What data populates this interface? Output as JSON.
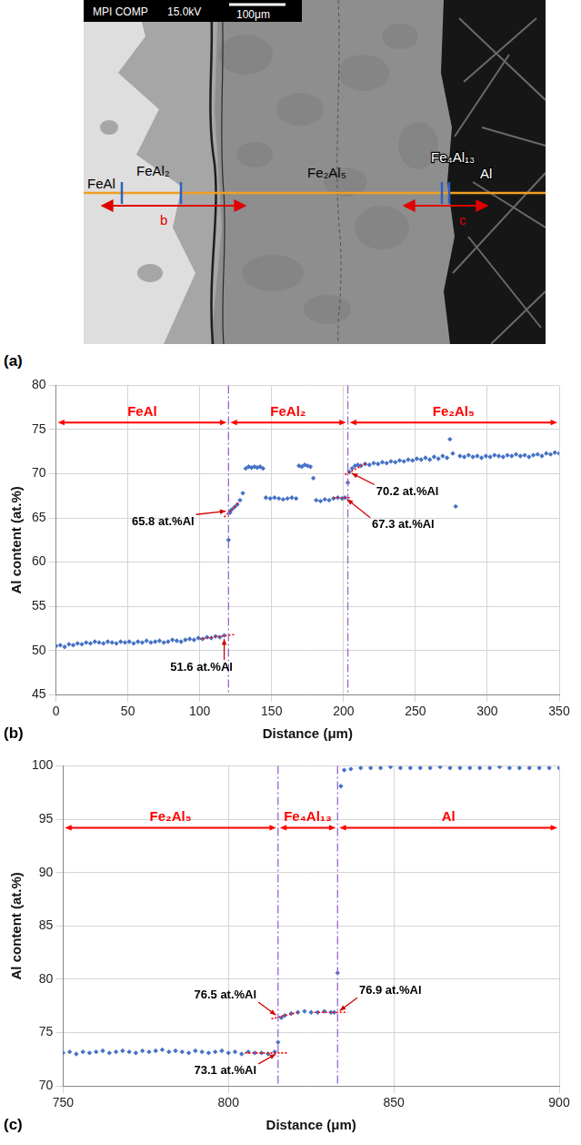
{
  "micrograph": {
    "panel": "(a)",
    "header": [
      "MPI COMP",
      "15.0kV"
    ],
    "scale_bar": "100μm",
    "phase_labels": [
      "FeAl",
      "FeAl₂",
      "Fe₂Al₅",
      "Fe₄Al₁₃",
      "Al"
    ],
    "line_labels": [
      "b",
      "c"
    ]
  },
  "chart_data": [
    {
      "type": "scatter",
      "panel": "(b)",
      "x_label": "Distance (μm)",
      "y_label": "Al content (at.%)",
      "xlim": [
        0,
        350
      ],
      "xticks": [
        0,
        50,
        100,
        150,
        200,
        250,
        300,
        350
      ],
      "ylim": [
        45,
        80
      ],
      "yticks": [
        45,
        50,
        55,
        60,
        65,
        70,
        75,
        80
      ],
      "grid": true,
      "series": [
        {
          "color": "#4472c4",
          "marker": "diamond",
          "x": [
            0,
            3,
            6,
            9,
            12,
            15,
            18,
            21,
            24,
            27,
            30,
            33,
            36,
            39,
            42,
            45,
            48,
            51,
            54,
            57,
            60,
            63,
            66,
            69,
            72,
            75,
            78,
            81,
            84,
            87,
            90,
            93,
            96,
            99,
            102,
            105,
            108,
            111,
            114,
            117,
            120,
            121,
            122,
            124,
            126,
            128,
            130,
            132,
            134,
            136,
            138,
            140,
            142,
            144,
            146,
            149,
            152,
            155,
            158,
            161,
            164,
            167,
            169,
            171,
            173,
            175,
            177,
            179,
            181,
            184,
            187,
            190,
            193,
            196,
            199,
            201,
            203,
            204,
            206,
            208,
            210,
            212,
            215,
            218,
            221,
            224,
            227,
            230,
            233,
            236,
            239,
            242,
            245,
            248,
            251,
            254,
            257,
            260,
            263,
            266,
            269,
            272,
            274,
            276,
            278,
            281,
            284,
            287,
            290,
            293,
            296,
            299,
            302,
            305,
            308,
            311,
            314,
            317,
            320,
            323,
            326,
            329,
            332,
            335,
            338,
            341,
            344,
            347,
            350
          ],
          "values": [
            50.5,
            50.6,
            50.4,
            50.7,
            50.6,
            50.8,
            50.7,
            50.9,
            50.8,
            51.0,
            50.9,
            50.8,
            51.0,
            50.9,
            50.8,
            51.0,
            50.9,
            51.0,
            50.8,
            51.0,
            50.9,
            51.1,
            50.9,
            51.0,
            51.1,
            50.9,
            51.0,
            51.2,
            51.1,
            51.0,
            51.2,
            51.3,
            51.2,
            51.4,
            51.3,
            51.5,
            51.4,
            51.6,
            51.5,
            51.7,
            62.5,
            65.6,
            65.9,
            66.2,
            66.5,
            67.0,
            67.8,
            70.6,
            70.8,
            70.7,
            70.8,
            70.7,
            70.8,
            70.6,
            67.3,
            67.2,
            67.3,
            67.2,
            67.1,
            67.2,
            67.3,
            67.2,
            70.9,
            70.8,
            71.0,
            70.9,
            70.8,
            69.5,
            67.0,
            66.9,
            67.1,
            67.0,
            67.2,
            67.3,
            67.2,
            67.3,
            69.0,
            70.2,
            70.6,
            70.9,
            71.0,
            70.9,
            71.1,
            71.0,
            71.2,
            71.1,
            71.3,
            71.2,
            71.4,
            71.3,
            71.5,
            71.4,
            71.6,
            71.5,
            71.7,
            71.6,
            71.8,
            71.6,
            71.9,
            71.7,
            72.0,
            71.8,
            73.9,
            72.3,
            66.3,
            72.0,
            71.9,
            72.1,
            71.9,
            72.0,
            71.8,
            72.0,
            71.9,
            72.1,
            72.0,
            71.9,
            72.1,
            72.0,
            72.2,
            72.0,
            72.1,
            71.9,
            72.1,
            72.2,
            72.0,
            72.3,
            72.2,
            72.4,
            72.3
          ]
        }
      ],
      "fits": [
        {
          "x": [
            100,
            124
          ],
          "values": [
            51.3,
            51.8
          ]
        },
        {
          "x": [
            117,
            127
          ],
          "values": [
            65.1,
            66.7
          ]
        },
        {
          "x": [
            193,
            205
          ],
          "values": [
            67.3,
            67.3
          ]
        },
        {
          "x": [
            201,
            216
          ],
          "values": [
            69.9,
            71.2
          ]
        }
      ],
      "fit_color": "#ff0000",
      "fit_line_style": "dotted",
      "boundaries": [
        120,
        203
      ],
      "boundary_color": "#9966cc",
      "boundary_line_style": "dashdot",
      "phases": [
        {
          "label": "FeAl",
          "from": 0,
          "to": 120
        },
        {
          "label": "FeAl₂",
          "from": 120,
          "to": 203
        },
        {
          "label": "Fe₂Al₅",
          "from": 203,
          "to": 350
        }
      ],
      "phase_bar_y": 75.8,
      "phase_color": "#ff0000",
      "annotations": [
        {
          "text": "51.6 at.%Al",
          "x": 117,
          "y": 51.6
        },
        {
          "text": "65.8 at.%Al",
          "x": 120,
          "y": 65.8
        },
        {
          "text": "70.2 at.%Al",
          "x": 204,
          "y": 70.2
        },
        {
          "text": "67.3 at.%Al",
          "x": 201,
          "y": 67.3
        }
      ]
    },
    {
      "type": "scatter",
      "panel": "(c)",
      "x_label": "Distance (μm)",
      "y_label": "Al content (at.%)",
      "xlim": [
        750,
        900
      ],
      "xticks": [
        750,
        800,
        850,
        900
      ],
      "ylim": [
        70,
        100
      ],
      "yticks": [
        70,
        75,
        80,
        85,
        90,
        95,
        100
      ],
      "grid": true,
      "series": [
        {
          "color": "#4472c4",
          "marker": "diamond",
          "x": [
            750,
            752,
            754,
            756,
            758,
            760,
            762,
            764,
            766,
            768,
            770,
            772,
            774,
            776,
            778,
            780,
            782,
            784,
            786,
            788,
            790,
            792,
            794,
            796,
            798,
            800,
            802,
            804,
            806,
            808,
            810,
            812,
            814,
            815,
            816,
            817,
            819,
            821,
            823,
            825,
            827,
            829,
            831,
            832,
            833,
            834,
            835,
            837,
            840,
            843,
            846,
            849,
            852,
            855,
            858,
            861,
            864,
            867,
            870,
            873,
            876,
            879,
            882,
            885,
            888,
            891,
            894,
            897,
            900
          ],
          "values": [
            73.1,
            73.2,
            73.0,
            73.2,
            73.1,
            73.2,
            73.3,
            73.1,
            73.2,
            73.3,
            73.2,
            73.1,
            73.3,
            73.2,
            73.3,
            73.4,
            73.2,
            73.3,
            73.2,
            73.1,
            73.3,
            73.2,
            73.1,
            73.2,
            73.3,
            73.1,
            73.2,
            73.0,
            73.2,
            73.1,
            73.1,
            73.0,
            73.2,
            74.1,
            76.4,
            76.6,
            76.8,
            76.9,
            77.0,
            76.9,
            76.9,
            77.0,
            76.9,
            76.9,
            80.6,
            98.1,
            99.6,
            99.7,
            99.8,
            99.8,
            99.8,
            99.9,
            99.8,
            99.8,
            99.8,
            99.8,
            99.9,
            99.8,
            99.8,
            99.8,
            99.8,
            99.8,
            99.9,
            99.8,
            99.8,
            99.8,
            99.8,
            99.8,
            99.8
          ]
        }
      ],
      "fits": [
        {
          "x": [
            805,
            818
          ],
          "values": [
            73.1,
            73.1
          ]
        },
        {
          "x": [
            813,
            821
          ],
          "values": [
            76.3,
            76.9
          ]
        },
        {
          "x": [
            826,
            836
          ],
          "values": [
            76.9,
            76.9
          ]
        }
      ],
      "fit_color": "#ff0000",
      "fit_line_style": "dotted",
      "boundaries": [
        815,
        833
      ],
      "boundary_color": "#9966cc",
      "boundary_line_style": "dashdot",
      "phases": [
        {
          "label": "Fe₂Al₅",
          "from": 750,
          "to": 815
        },
        {
          "label": "Fe₄Al₁₃",
          "from": 815,
          "to": 833
        },
        {
          "label": "Al",
          "from": 833,
          "to": 900
        }
      ],
      "phase_bar_y": 94.2,
      "phase_color": "#ff0000",
      "annotations": [
        {
          "text": "76.5 at.%Al",
          "x": 815,
          "y": 76.5
        },
        {
          "text": "76.9 at.%Al",
          "x": 833,
          "y": 76.9
        },
        {
          "text": "73.1 at.%Al",
          "x": 815,
          "y": 73.1
        }
      ]
    }
  ]
}
